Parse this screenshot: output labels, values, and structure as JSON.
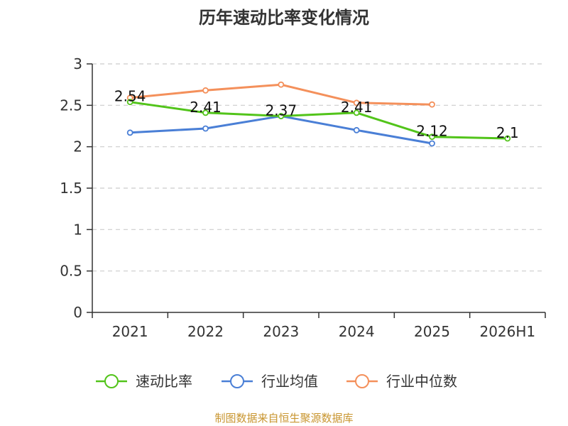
{
  "chart_data": {
    "type": "line",
    "title": "历年速动比率变化情况",
    "categories": [
      "2021",
      "2022",
      "2023",
      "2024",
      "2025",
      "2026H1"
    ],
    "ylim": [
      0,
      3
    ],
    "yticks": [
      "0",
      "0.5",
      "1",
      "1.5",
      "2",
      "2.5",
      "3"
    ],
    "grid": true,
    "legend_position": "bottom",
    "series": [
      {
        "name": "速动比率",
        "color": "#52c41a",
        "values": [
          2.54,
          2.41,
          2.37,
          2.41,
          2.12,
          2.1
        ],
        "labels": [
          "2.54",
          "2.41",
          "2.37",
          "2.41",
          "2.12",
          "2.1"
        ]
      },
      {
        "name": "行业均值",
        "color": "#4a7fd6",
        "values": [
          2.17,
          2.22,
          2.37,
          2.2,
          2.04,
          null
        ]
      },
      {
        "name": "行业中位数",
        "color": "#f4905b",
        "values": [
          2.59,
          2.68,
          2.75,
          2.53,
          2.51,
          null
        ]
      }
    ]
  },
  "source": "制图数据来自恒生聚源数据库"
}
